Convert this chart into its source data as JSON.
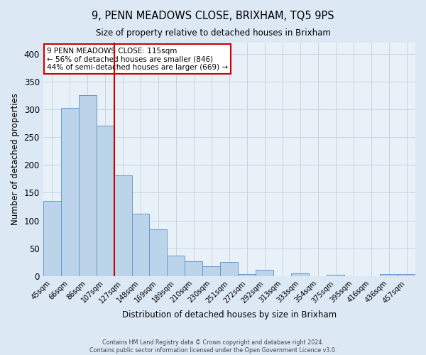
{
  "title": "9, PENN MEADOWS CLOSE, BRIXHAM, TQ5 9PS",
  "subtitle": "Size of property relative to detached houses in Brixham",
  "xlabel": "Distribution of detached houses by size in Brixham",
  "ylabel": "Number of detached properties",
  "bar_labels": [
    "45sqm",
    "66sqm",
    "86sqm",
    "107sqm",
    "127sqm",
    "148sqm",
    "169sqm",
    "189sqm",
    "210sqm",
    "230sqm",
    "251sqm",
    "272sqm",
    "292sqm",
    "313sqm",
    "333sqm",
    "354sqm",
    "375sqm",
    "395sqm",
    "416sqm",
    "436sqm",
    "457sqm"
  ],
  "bar_values": [
    135,
    302,
    325,
    270,
    181,
    112,
    84,
    37,
    27,
    17,
    25,
    4,
    11,
    0,
    5,
    0,
    2,
    0,
    0,
    3,
    3
  ],
  "bar_color": "#bcd4ea",
  "bar_edge_color": "#6699cc",
  "vertical_line_color": "#cc0000",
  "ylim": [
    0,
    420
  ],
  "yticks": [
    0,
    50,
    100,
    150,
    200,
    250,
    300,
    350,
    400
  ],
  "annotation_title": "9 PENN MEADOWS CLOSE: 115sqm",
  "annotation_line1": "← 56% of detached houses are smaller (846)",
  "annotation_line2": "44% of semi-detached houses are larger (669) →",
  "annotation_box_color": "#ffffff",
  "annotation_border_color": "#cc0000",
  "footer_line1": "Contains HM Land Registry data © Crown copyright and database right 2024.",
  "footer_line2": "Contains public sector information licensed under the Open Government Licence v3.0.",
  "background_color": "#dce9f5",
  "plot_bg_color": "#e8f1f8",
  "grid_color": "#c0cfe0"
}
